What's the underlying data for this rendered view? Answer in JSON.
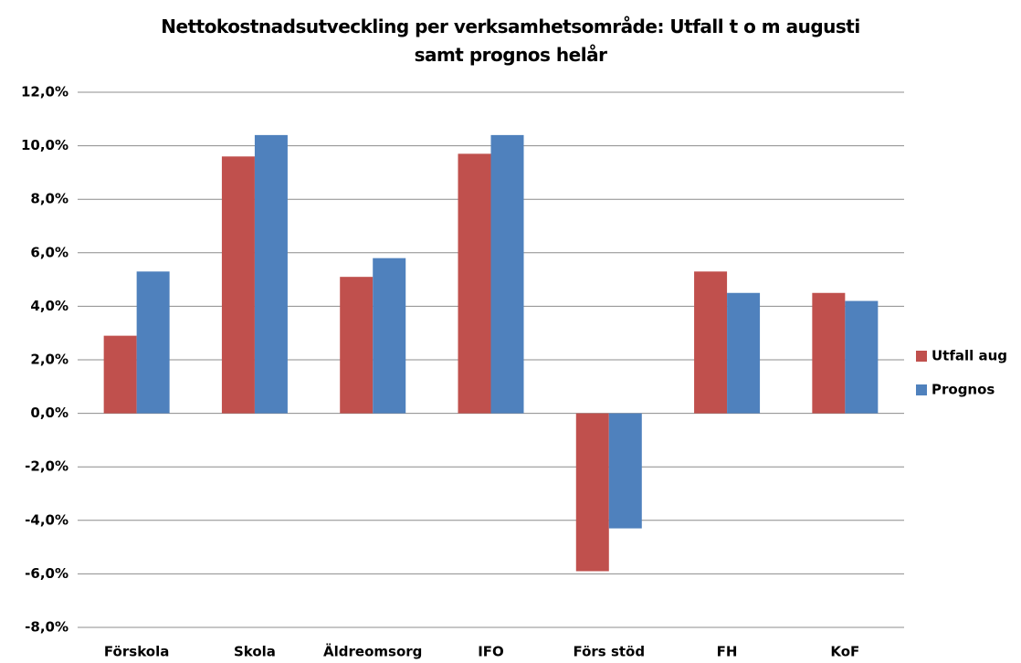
{
  "chart_data": {
    "type": "bar",
    "title": "Nettokostnadsutveckling per verksamhetsområde: Utfall t o m augusti samt prognos helår",
    "categories": [
      "Förskola",
      "Skola",
      "Äldreomsorg",
      "IFO",
      "Förs stöd",
      "FH",
      "KoF"
    ],
    "series": [
      {
        "name": "Utfall aug",
        "color": "#c0504d",
        "values": [
          2.9,
          9.6,
          5.1,
          9.7,
          -5.9,
          5.3,
          4.5
        ]
      },
      {
        "name": "Prognos",
        "color": "#4f81bd",
        "values": [
          5.3,
          10.4,
          5.8,
          10.4,
          -4.3,
          4.5,
          4.2
        ]
      }
    ],
    "ylim": [
      -8,
      12
    ],
    "yticks": [
      {
        "value": -8,
        "label": "-8,0%"
      },
      {
        "value": -6,
        "label": "-6,0%"
      },
      {
        "value": -4,
        "label": "-4,0%"
      },
      {
        "value": -2,
        "label": "-2,0%"
      },
      {
        "value": 0,
        "label": "0,0%"
      },
      {
        "value": 2,
        "label": "2,0%"
      },
      {
        "value": 4,
        "label": "4,0%"
      },
      {
        "value": 6,
        "label": "6,0%"
      },
      {
        "value": 8,
        "label": "8,0%"
      },
      {
        "value": 10,
        "label": "10,0%"
      },
      {
        "value": 12,
        "label": "12,0%"
      }
    ],
    "grid": true,
    "legend": "right"
  }
}
